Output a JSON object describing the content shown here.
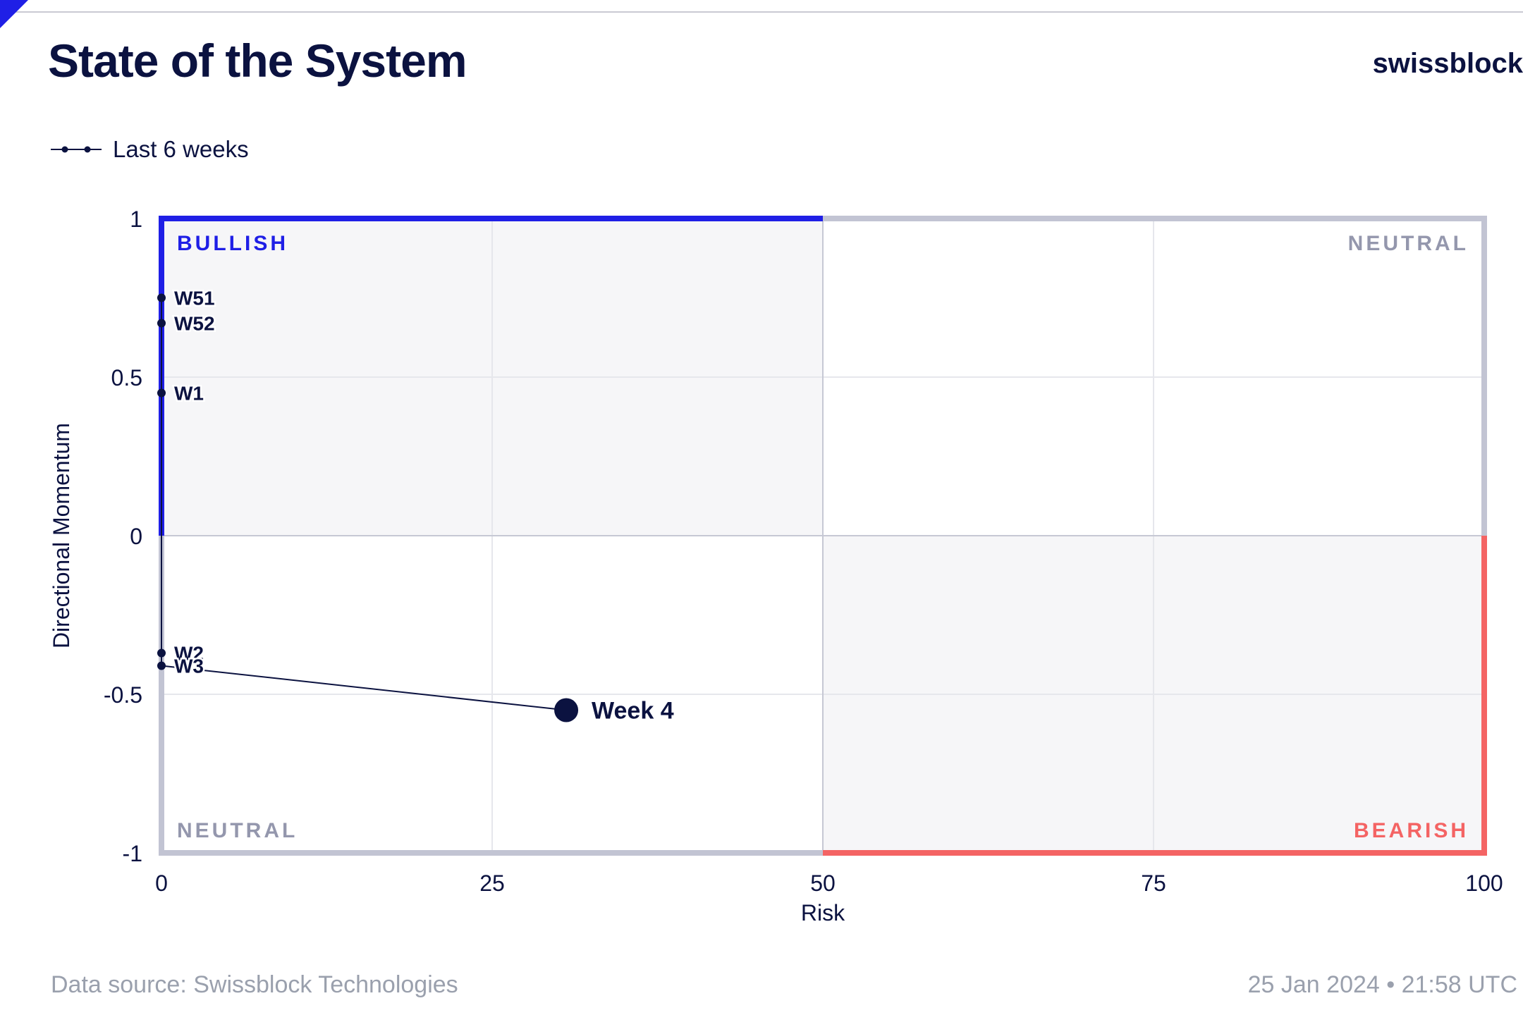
{
  "header": {
    "title": "State of the System",
    "brand": "swissblock"
  },
  "legend": {
    "label": "Last 6 weeks"
  },
  "footer": {
    "source": "Data source: Swissblock Technologies",
    "timestamp": "25 Jan 2024 • 21:58 UTC"
  },
  "colors": {
    "bullish": "#1f1fe6",
    "bearish": "#f46464",
    "neutral": "#c2c4d3",
    "neutral_text": "#9497ad",
    "ink": "#0b1240",
    "shade": "#f6f6f8"
  },
  "chart_data": {
    "type": "scatter",
    "xlabel": "Risk",
    "ylabel": "Directional Momentum",
    "xlim": [
      0,
      100
    ],
    "ylim": [
      -1,
      1
    ],
    "xticks": [
      "0",
      "25",
      "50",
      "75",
      "100"
    ],
    "yticks": [
      "1",
      "0.5",
      "0",
      "-0.5",
      "-1"
    ],
    "grid": true,
    "quadrants": {
      "top_left": "BULLISH",
      "top_right": "NEUTRAL",
      "bottom_left": "NEUTRAL",
      "bottom_right": "BEARISH"
    },
    "series": [
      {
        "name": "Last 6 weeks",
        "points": [
          {
            "label": "W51",
            "x": 0,
            "y": 0.75
          },
          {
            "label": "W52",
            "x": 0,
            "y": 0.67
          },
          {
            "label": "W1",
            "x": 0,
            "y": 0.45
          },
          {
            "label": "W2",
            "x": 0,
            "y": -0.37
          },
          {
            "label": "W3",
            "x": 0,
            "y": -0.41
          },
          {
            "label": "Week 4",
            "x": 30.6,
            "y": -0.55
          }
        ]
      }
    ]
  }
}
